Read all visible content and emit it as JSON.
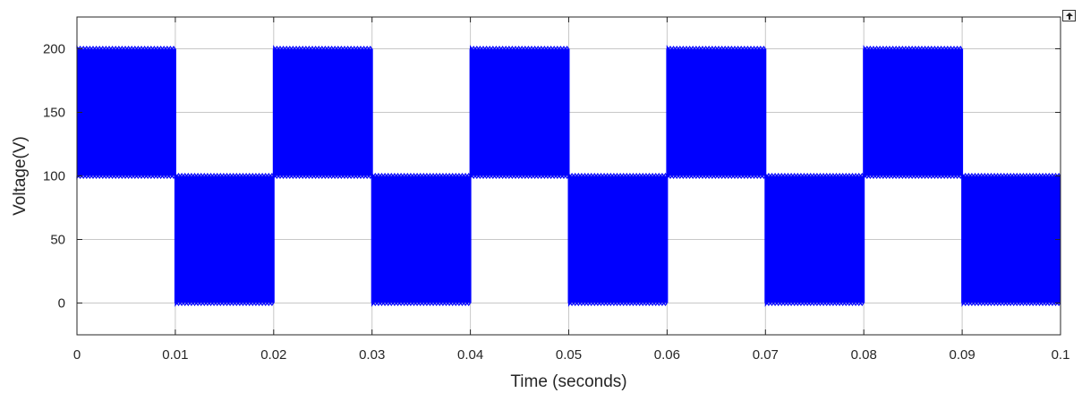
{
  "chart_data": {
    "type": "line",
    "title": "",
    "xlabel": "Time (seconds)",
    "ylabel": "Voltage(V)",
    "xlim": [
      0,
      0.1
    ],
    "ylim": [
      -25,
      225
    ],
    "xticks": [
      "0",
      "0.01",
      "0.02",
      "0.03",
      "0.04",
      "0.05",
      "0.06",
      "0.07",
      "0.08",
      "0.09",
      "0.1"
    ],
    "yticks": [
      "0",
      "50",
      "100",
      "150",
      "200"
    ],
    "grid": true,
    "series": [
      {
        "color": "#0000ff",
        "description_points": {
          "x": [
            0,
            0.01,
            0.01,
            0.02,
            0.02,
            0.03,
            0.03,
            0.04,
            0.04,
            0.05,
            0.05,
            0.06,
            0.06,
            0.07,
            0.07,
            0.08,
            0.08,
            0.09,
            0.09,
            0.1
          ],
          "y_max": [
            200,
            200,
            100,
            100,
            200,
            200,
            100,
            100,
            200,
            200,
            100,
            100,
            200,
            200,
            100,
            100,
            200,
            200,
            100,
            100
          ],
          "y_min": [
            100,
            100,
            0,
            0,
            100,
            100,
            0,
            0,
            100,
            100,
            0,
            0,
            100,
            100,
            0,
            0,
            100,
            100,
            0,
            0
          ]
        }
      }
    ]
  },
  "toolbar": {
    "expand_icon": "expand-icon"
  }
}
